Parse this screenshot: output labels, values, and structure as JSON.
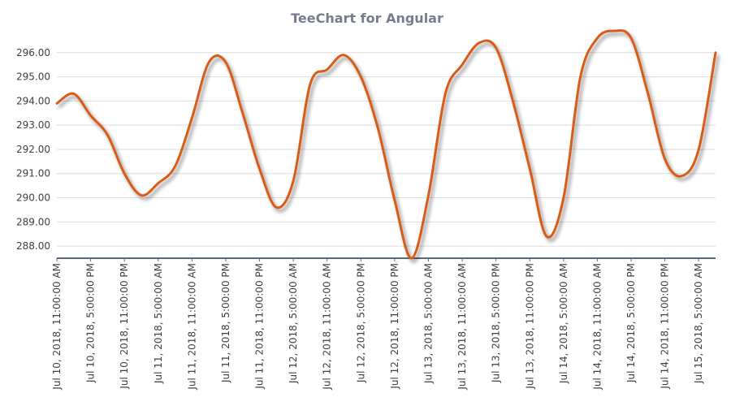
{
  "chart_data": {
    "type": "line",
    "title": "TeeChart for Angular",
    "xlabel": "",
    "ylabel": "",
    "ylim": [
      287.5,
      296.9
    ],
    "y_ticks": [
      "288.00",
      "289.00",
      "290.00",
      "291.00",
      "292.00",
      "293.00",
      "294.00",
      "295.00",
      "296.00"
    ],
    "x_ticks": [
      "Jul 10, 2018, 11:00:00 AM",
      "Jul 10, 2018, 5:00:00 PM",
      "Jul 10, 2018, 11:00:00 PM",
      "Jul 11, 2018, 5:00:00 AM",
      "Jul 11, 2018, 11:00:00 AM",
      "Jul 11, 2018, 5:00:00 PM",
      "Jul 11, 2018, 11:00:00 PM",
      "Jul 12, 2018, 5:00:00 AM",
      "Jul 12, 2018, 11:00:00 AM",
      "Jul 12, 2018, 5:00:00 PM",
      "Jul 12, 2018, 11:00:00 PM",
      "Jul 13, 2018, 5:00:00 AM",
      "Jul 13, 2018, 11:00:00 AM",
      "Jul 13, 2018, 5:00:00 PM",
      "Jul 13, 2018, 11:00:00 PM",
      "Jul 14, 2018, 5:00:00 AM",
      "Jul 14, 2018, 11:00:00 AM",
      "Jul 14, 2018, 5:00:00 PM",
      "Jul 14, 2018, 11:00:00 PM",
      "Jul 15, 2018, 5:00:00 AM"
    ],
    "grid": true,
    "legend": "none",
    "colors": {
      "line": "#d95c16",
      "grid": "#dedede",
      "axis": "#5a6a7c",
      "title": "#767c8c"
    },
    "series": [
      {
        "x": [
          "Jul 10, 2018, 11:00:00 AM",
          "Jul 10, 2018, 2:00:00 PM",
          "Jul 10, 2018, 5:00:00 PM",
          "Jul 10, 2018, 8:00:00 PM",
          "Jul 10, 2018, 11:00:00 PM",
          "Jul 11, 2018, 2:00:00 AM",
          "Jul 11, 2018, 5:00:00 AM",
          "Jul 11, 2018, 8:00:00 AM",
          "Jul 11, 2018, 11:00:00 AM",
          "Jul 11, 2018, 2:00:00 PM",
          "Jul 11, 2018, 5:00:00 PM",
          "Jul 11, 2018, 8:00:00 PM",
          "Jul 11, 2018, 11:00:00 PM",
          "Jul 12, 2018, 2:00:00 AM",
          "Jul 12, 2018, 5:00:00 AM",
          "Jul 12, 2018, 8:00:00 AM",
          "Jul 12, 2018, 11:00:00 AM",
          "Jul 12, 2018, 2:00:00 PM",
          "Jul 12, 2018, 5:00:00 PM",
          "Jul 12, 2018, 8:00:00 PM",
          "Jul 12, 2018, 11:00:00 PM",
          "Jul 13, 2018, 2:00:00 AM",
          "Jul 13, 2018, 5:00:00 AM",
          "Jul 13, 2018, 8:00:00 AM",
          "Jul 13, 2018, 11:00:00 AM",
          "Jul 13, 2018, 2:00:00 PM",
          "Jul 13, 2018, 5:00:00 PM",
          "Jul 13, 2018, 8:00:00 PM",
          "Jul 13, 2018, 11:00:00 PM",
          "Jul 14, 2018, 2:00:00 AM",
          "Jul 14, 2018, 5:00:00 AM",
          "Jul 14, 2018, 8:00:00 AM",
          "Jul 14, 2018, 11:00:00 AM",
          "Jul 14, 2018, 2:00:00 PM",
          "Jul 14, 2018, 5:00:00 PM",
          "Jul 14, 2018, 8:00:00 PM",
          "Jul 14, 2018, 11:00:00 PM",
          "Jul 15, 2018, 2:00:00 AM",
          "Jul 15, 2018, 5:00:00 AM",
          "Jul 15, 2018, 8:00:00 AM"
        ],
        "values": [
          293.9,
          294.3,
          293.4,
          292.6,
          291.0,
          290.1,
          290.6,
          291.3,
          293.3,
          295.6,
          295.6,
          293.5,
          291.2,
          289.6,
          290.7,
          294.7,
          295.3,
          295.9,
          295.0,
          292.9,
          289.9,
          287.5,
          290.1,
          294.3,
          295.5,
          296.4,
          296.2,
          294.0,
          291.2,
          288.4,
          290.0,
          295.0,
          296.6,
          296.9,
          296.6,
          294.3,
          291.6,
          290.9,
          292.0,
          296.0
        ]
      }
    ]
  }
}
